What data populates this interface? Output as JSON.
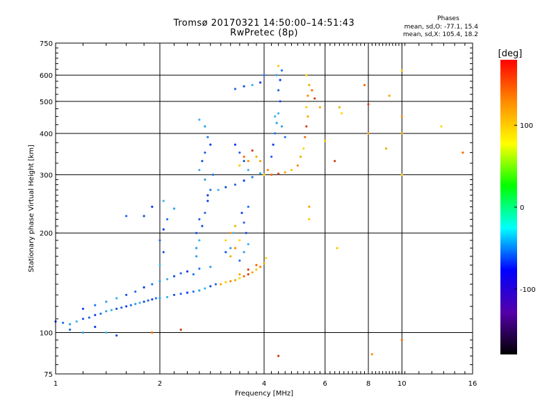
{
  "chart_data": {
    "type": "scatter",
    "title": "Tromsø 20170321 14:50:00–14:51:43",
    "subtitle": "RwPretec (8p)",
    "xlabel": "Frequency [MHz]",
    "ylabel": "Stationary phase Virtual Height [km]",
    "x_scale": "log",
    "y_scale": "log",
    "xlim": [
      1,
      16
    ],
    "ylim": [
      75,
      750
    ],
    "x_ticks": [
      1,
      2,
      4,
      6,
      8,
      10,
      16
    ],
    "x_tick_labels": [
      "1",
      "2",
      "4",
      "6",
      "8",
      "10",
      "16"
    ],
    "y_ticks": [
      75,
      100,
      200,
      300,
      400,
      500,
      600,
      750
    ],
    "y_tick_labels": [
      "75",
      "100",
      "200",
      "300",
      "400",
      "500",
      "600",
      "750"
    ],
    "grid": true,
    "phase_info": {
      "title": "Phases",
      "o_mode": "mean, sd,O: -77.1, 15.4",
      "x_mode": "mean, sd,X: 105.4, 18.2"
    },
    "colorbar": {
      "label": "[deg]",
      "range": [
        -180,
        180
      ],
      "ticks": [
        100,
        0,
        -100
      ],
      "tick_labels": [
        "100",
        "0",
        "-100"
      ],
      "colors": [
        "#ff0000",
        "#ff8c00",
        "#ffff00",
        "#00ff00",
        "#00ffff",
        "#0000ff",
        "#5500aa",
        "#000000"
      ]
    },
    "series": [
      {
        "points": [
          [
            1.0,
            108
          ],
          [
            1.05,
            107
          ],
          [
            1.1,
            106
          ],
          [
            1.15,
            108
          ],
          [
            1.2,
            110
          ],
          [
            1.25,
            111
          ],
          [
            1.3,
            113
          ],
          [
            1.35,
            114
          ],
          [
            1.4,
            116
          ],
          [
            1.45,
            117
          ],
          [
            1.5,
            118
          ],
          [
            1.55,
            119
          ],
          [
            1.6,
            120
          ],
          [
            1.65,
            121
          ],
          [
            1.7,
            122
          ],
          [
            1.75,
            123
          ],
          [
            1.8,
            124
          ],
          [
            1.85,
            125
          ],
          [
            1.9,
            126
          ],
          [
            1.95,
            127
          ],
          [
            2.0,
            127
          ],
          [
            2.1,
            128
          ],
          [
            2.2,
            130
          ],
          [
            2.3,
            131
          ],
          [
            2.4,
            132
          ],
          [
            2.5,
            133
          ],
          [
            2.6,
            134
          ],
          [
            2.7,
            136
          ],
          [
            2.8,
            138
          ],
          [
            2.9,
            140
          ],
          [
            1.2,
            118
          ],
          [
            1.3,
            121
          ],
          [
            1.4,
            124
          ],
          [
            1.5,
            127
          ],
          [
            1.6,
            130
          ],
          [
            1.7,
            133
          ],
          [
            1.8,
            137
          ],
          [
            1.9,
            140
          ],
          [
            2.0,
            143
          ],
          [
            2.1,
            145
          ],
          [
            2.2,
            148
          ],
          [
            2.3,
            151
          ],
          [
            2.4,
            153
          ],
          [
            2.6,
            156
          ],
          [
            2.8,
            158
          ],
          [
            2.0,
            160
          ],
          [
            2.05,
            175
          ],
          [
            2.0,
            190
          ],
          [
            2.05,
            205
          ],
          [
            2.1,
            220
          ],
          [
            2.2,
            237
          ],
          [
            2.05,
            250
          ],
          [
            1.8,
            225
          ],
          [
            1.6,
            225
          ],
          [
            1.9,
            240
          ],
          [
            2.5,
            150
          ],
          [
            2.55,
            170
          ],
          [
            2.6,
            190
          ],
          [
            2.65,
            210
          ],
          [
            2.7,
            230
          ],
          [
            2.75,
            250
          ],
          [
            2.8,
            270
          ],
          [
            2.7,
            290
          ],
          [
            2.6,
            310
          ],
          [
            2.65,
            330
          ],
          [
            2.7,
            350
          ],
          [
            2.8,
            370
          ],
          [
            2.75,
            390
          ],
          [
            2.7,
            420
          ],
          [
            2.6,
            440
          ],
          [
            2.55,
            200
          ],
          [
            2.6,
            220
          ],
          [
            2.75,
            260
          ],
          [
            2.85,
            300
          ],
          [
            2.55,
            180
          ],
          [
            2.95,
            270
          ],
          [
            3.1,
            275
          ],
          [
            3.3,
            280
          ],
          [
            3.5,
            288
          ],
          [
            3.7,
            295
          ],
          [
            3.9,
            303
          ],
          [
            3.6,
            310
          ],
          [
            3.5,
            330
          ],
          [
            3.4,
            350
          ],
          [
            3.3,
            370
          ],
          [
            3.4,
            165
          ],
          [
            3.5,
            175
          ],
          [
            3.6,
            185
          ],
          [
            3.55,
            200
          ],
          [
            3.5,
            215
          ],
          [
            3.45,
            230
          ],
          [
            3.6,
            240
          ],
          [
            3.2,
            180
          ],
          [
            3.25,
            200
          ],
          [
            3.1,
            175
          ],
          [
            4.2,
            340
          ],
          [
            4.25,
            370
          ],
          [
            4.3,
            400
          ],
          [
            4.35,
            430
          ],
          [
            4.4,
            460
          ],
          [
            4.45,
            500
          ],
          [
            4.4,
            540
          ],
          [
            4.45,
            580
          ],
          [
            4.5,
            620
          ],
          [
            4.35,
            600
          ],
          [
            3.7,
            560
          ],
          [
            3.5,
            555
          ],
          [
            3.3,
            545
          ],
          [
            3.9,
            570
          ],
          [
            4.0,
            600
          ],
          [
            1.2,
            100
          ],
          [
            1.4,
            100
          ],
          [
            1.5,
            98
          ],
          [
            1.1,
            102
          ],
          [
            1.3,
            104
          ],
          [
            4.6,
            390
          ],
          [
            4.5,
            420
          ],
          [
            4.3,
            450
          ]
        ]
      },
      {
        "points": [
          [
            3.0,
            140
          ],
          [
            3.1,
            142
          ],
          [
            3.2,
            143
          ],
          [
            3.3,
            144
          ],
          [
            3.4,
            146
          ],
          [
            3.5,
            148
          ],
          [
            3.6,
            150
          ],
          [
            3.7,
            152
          ],
          [
            3.8,
            155
          ],
          [
            3.9,
            158
          ],
          [
            4.0,
            162
          ],
          [
            4.05,
            168
          ],
          [
            3.8,
            160
          ],
          [
            3.6,
            155
          ],
          [
            3.4,
            150
          ],
          [
            3.4,
            320
          ],
          [
            3.6,
            330
          ],
          [
            3.8,
            340
          ],
          [
            4.0,
            300
          ],
          [
            4.2,
            300
          ],
          [
            4.4,
            302
          ],
          [
            4.6,
            305
          ],
          [
            4.8,
            310
          ],
          [
            5.0,
            320
          ],
          [
            5.1,
            340
          ],
          [
            5.2,
            360
          ],
          [
            5.25,
            390
          ],
          [
            5.3,
            420
          ],
          [
            5.35,
            450
          ],
          [
            5.3,
            480
          ],
          [
            5.35,
            520
          ],
          [
            5.4,
            560
          ],
          [
            5.3,
            600
          ],
          [
            5.5,
            540
          ],
          [
            5.6,
            510
          ],
          [
            5.8,
            480
          ],
          [
            6.0,
            380
          ],
          [
            3.3,
            180
          ],
          [
            3.2,
            170
          ],
          [
            3.4,
            190
          ],
          [
            3.5,
            340
          ],
          [
            3.7,
            355
          ],
          [
            3.9,
            330
          ],
          [
            4.4,
            640
          ],
          [
            4.1,
            310
          ],
          [
            6.6,
            480
          ],
          [
            6.7,
            460
          ],
          [
            7.8,
            560
          ],
          [
            8.0,
            490
          ],
          [
            9.2,
            520
          ],
          [
            10.0,
            620
          ],
          [
            10.0,
            450
          ],
          [
            10.0,
            400
          ],
          [
            10.0,
            300
          ],
          [
            10.0,
            95
          ],
          [
            4.4,
            85
          ],
          [
            5.4,
            240
          ],
          [
            6.5,
            180
          ],
          [
            8.2,
            86
          ],
          [
            9.0,
            360
          ],
          [
            13.0,
            420
          ],
          [
            15.0,
            350
          ],
          [
            6.4,
            330
          ],
          [
            8.0,
            400
          ],
          [
            5.4,
            220
          ],
          [
            3.2,
            200
          ],
          [
            3.3,
            210
          ],
          [
            3.1,
            190
          ],
          [
            1.9,
            100
          ],
          [
            2.3,
            102
          ]
        ]
      }
    ]
  }
}
